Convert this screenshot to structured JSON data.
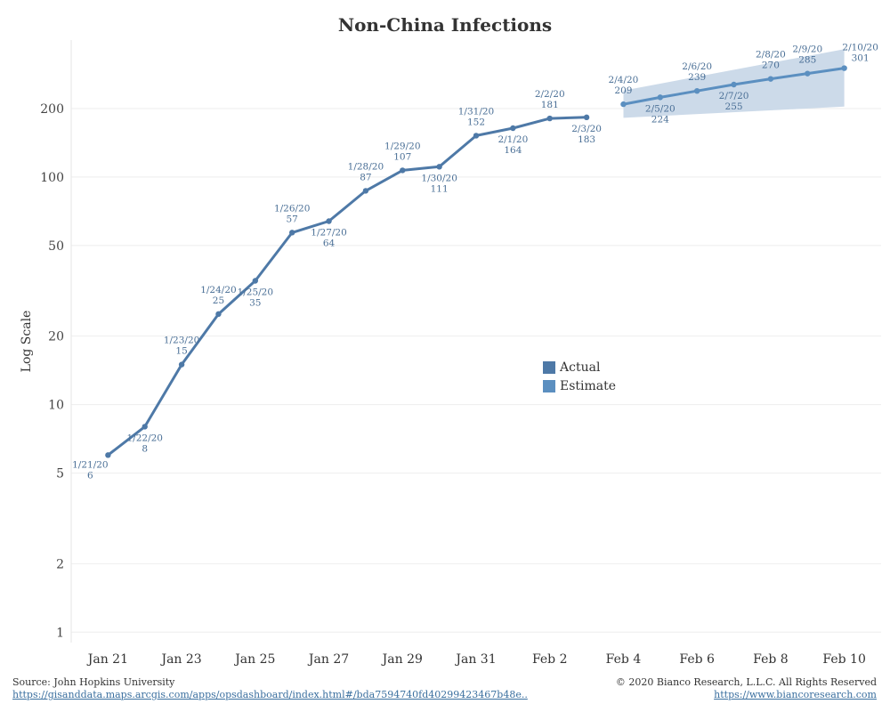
{
  "colors": {
    "actual": "#4e79a7",
    "estimate": "#5b8fc0",
    "band": "#c9d8e8",
    "label": "#4a6f96",
    "grid": "#eeeeee"
  },
  "chart_data": {
    "type": "line",
    "title": "Non-China Infections",
    "xlabel": "",
    "ylabel": "Log Scale",
    "y_scale": "log",
    "ylim": [
      0.9,
      400
    ],
    "xlim": [
      "2020-01-20",
      "2020-02-11"
    ],
    "grid": true,
    "legend_position": "center-right",
    "y_ticks": [
      1,
      2,
      5,
      10,
      20,
      50,
      100,
      200
    ],
    "x_ticks": [
      "Jan 21",
      "Jan 23",
      "Jan 25",
      "Jan 27",
      "Jan 29",
      "Jan 31",
      "Feb 2",
      "Feb 4",
      "Feb 6",
      "Feb 8",
      "Feb 10"
    ],
    "x_tick_dates": [
      "2020-01-21",
      "2020-01-23",
      "2020-01-25",
      "2020-01-27",
      "2020-01-29",
      "2020-01-31",
      "2020-02-02",
      "2020-02-04",
      "2020-02-06",
      "2020-02-08",
      "2020-02-10"
    ],
    "series": [
      {
        "name": "Actual",
        "points": [
          {
            "date": "2020-01-21",
            "label": "1/21/20",
            "value": 6
          },
          {
            "date": "2020-01-22",
            "label": "1/22/20",
            "value": 8
          },
          {
            "date": "2020-01-23",
            "label": "1/23/20",
            "value": 15
          },
          {
            "date": "2020-01-24",
            "label": "1/24/20",
            "value": 25
          },
          {
            "date": "2020-01-25",
            "label": "1/25/20",
            "value": 35
          },
          {
            "date": "2020-01-26",
            "label": "1/26/20",
            "value": 57
          },
          {
            "date": "2020-01-27",
            "label": "1/27/20",
            "value": 64
          },
          {
            "date": "2020-01-28",
            "label": "1/28/20",
            "value": 87
          },
          {
            "date": "2020-01-29",
            "label": "1/29/20",
            "value": 107
          },
          {
            "date": "2020-01-30",
            "label": "1/30/20",
            "value": 111
          },
          {
            "date": "2020-01-31",
            "label": "1/31/20",
            "value": 152
          },
          {
            "date": "2020-02-01",
            "label": "2/1/20",
            "value": 164
          },
          {
            "date": "2020-02-02",
            "label": "2/2/20",
            "value": 181
          },
          {
            "date": "2020-02-03",
            "label": "2/3/20",
            "value": 183
          }
        ]
      },
      {
        "name": "Estimate",
        "points": [
          {
            "date": "2020-02-04",
            "label": "2/4/20",
            "value": 209
          },
          {
            "date": "2020-02-05",
            "label": "2/5/20",
            "value": 224
          },
          {
            "date": "2020-02-06",
            "label": "2/6/20",
            "value": 239
          },
          {
            "date": "2020-02-07",
            "label": "2/7/20",
            "value": 255
          },
          {
            "date": "2020-02-08",
            "label": "2/8/20",
            "value": 270
          },
          {
            "date": "2020-02-09",
            "label": "2/9/20",
            "value": 285
          },
          {
            "date": "2020-02-10",
            "label": "2/10/20",
            "value": 301
          }
        ],
        "band": {
          "lower": [
            {
              "date": "2020-02-04",
              "value": 182
            },
            {
              "date": "2020-02-10",
              "value": 204
            }
          ],
          "upper": [
            {
              "date": "2020-02-04",
              "value": 240
            },
            {
              "date": "2020-02-10",
              "value": 365
            }
          ]
        }
      }
    ]
  },
  "legend": {
    "actual_label": "Actual",
    "estimate_label": "Estimate"
  },
  "footer": {
    "source_text": "Source: John Hopkins University",
    "source_link": "https://gisanddata.maps.arcgis.com/apps/opsdashboard/index.html#/bda7594740fd40299423467b48e..",
    "copyright": "© 2020 Bianco Research, L.L.C. All Rights Reserved",
    "website": "https://www.biancoresearch.com"
  }
}
